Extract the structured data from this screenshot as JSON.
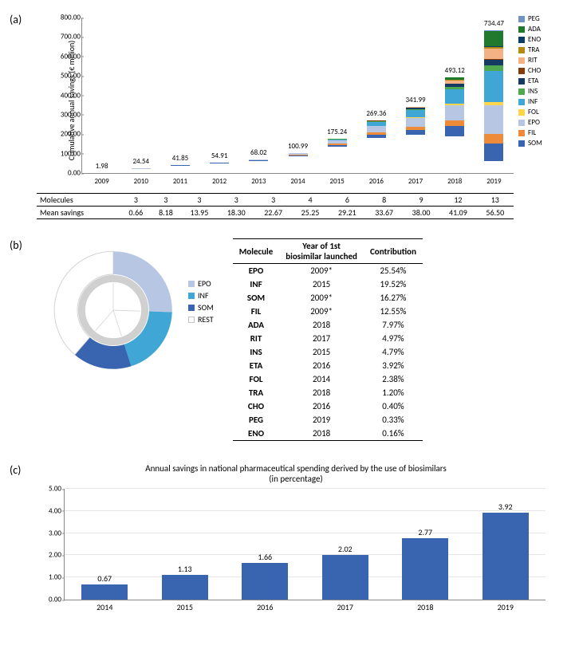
{
  "panels": {
    "a": "(a)",
    "b": "(b)",
    "c": "(c)"
  },
  "chartA": {
    "y_title": "Cumulative annual savings (€ million)",
    "ylim": [
      0,
      800
    ],
    "ytick_step": 100,
    "ytick_decimals": 2,
    "categories": [
      "2009",
      "2010",
      "2011",
      "2012",
      "2013",
      "2014",
      "2015",
      "2016",
      "2017",
      "2018",
      "2019"
    ],
    "totals": [
      "1.98",
      "24.54",
      "41.85",
      "54.91",
      "68.02",
      "100.99",
      "175.24",
      "269.36",
      "341.99",
      "493.12",
      "734.47"
    ],
    "legend_order": [
      "PEG",
      "ADA",
      "ENO",
      "TRA",
      "RIT",
      "CHO",
      "ETA",
      "INS",
      "INF",
      "FOL",
      "EPO",
      "FIL",
      "SOM"
    ],
    "colors": {
      "PEG": "#6f93c9",
      "ADA": "#1f7a2e",
      "ENO": "#0b3d66",
      "TRA": "#b58a13",
      "RIT": "#f4b183",
      "CHO": "#843c0c",
      "ETA": "#153b63",
      "INS": "#4ea84e",
      "INF": "#3fa6d6",
      "FOL": "#ffd54a",
      "EPO": "#b7c6e3",
      "FIL": "#ed8b3a",
      "SOM": "#3864b0"
    },
    "stacks": [
      {
        "EPO": 0.9,
        "FIL": 0.6,
        "SOM": 0.48
      },
      {
        "EPO": 12,
        "FIL": 6,
        "SOM": 6.54
      },
      {
        "EPO": 20,
        "FIL": 11,
        "SOM": 10.85
      },
      {
        "EPO": 26,
        "FIL": 15,
        "SOM": 13.91
      },
      {
        "EPO": 32,
        "FIL": 18,
        "SOM": 18.02
      },
      {
        "FOL": 3,
        "EPO": 48,
        "FIL": 24,
        "SOM": 25.99
      },
      {
        "INS": 5,
        "INF": 22,
        "FOL": 5,
        "EPO": 72,
        "FIL": 32,
        "SOM": 39.24
      },
      {
        "CHO": 2,
        "ETA": 8,
        "INS": 12,
        "INF": 55,
        "FOL": 7,
        "EPO": 95,
        "FIL": 38,
        "SOM": 52.36
      },
      {
        "RIT": 10,
        "CHO": 3,
        "ETA": 15,
        "INS": 17,
        "INF": 80,
        "FOL": 9,
        "EPO": 105,
        "FIL": 40,
        "SOM": 62.99
      },
      {
        "ADA": 22,
        "ENO": 2,
        "TRA": 6,
        "RIT": 25,
        "CHO": 3,
        "ETA": 22,
        "INS": 22,
        "INF": 120,
        "FOL": 12,
        "EPO": 130,
        "FIL": 45,
        "SOM": 84.12
      },
      {
        "PEG": 5,
        "ADA": 85,
        "ENO": 3,
        "TRA": 12,
        "RIT": 55,
        "CHO": 4,
        "ETA": 33,
        "INS": 32,
        "INF": 175,
        "FOL": 18,
        "EPO": 160,
        "FIL": 52,
        "SOM": 100.47
      }
    ],
    "table": {
      "rows": [
        {
          "head": "Molecules",
          "cells": [
            "3",
            "3",
            "3",
            "3",
            "3",
            "4",
            "6",
            "8",
            "9",
            "12",
            "13"
          ]
        },
        {
          "head": "Mean savings",
          "cells": [
            "0.66",
            "8.18",
            "13.95",
            "18.30",
            "22.67",
            "25.25",
            "29.21",
            "33.67",
            "38.00",
            "41.09",
            "56.50"
          ]
        }
      ]
    }
  },
  "chartB": {
    "donut": {
      "outer": [
        {
          "key": "EPO",
          "value": 25.54,
          "color": "#b7c6e3"
        },
        {
          "key": "INF",
          "value": 19.52,
          "color": "#3fa6d6"
        },
        {
          "key": "SOM",
          "value": 16.27,
          "color": "#3864b0"
        },
        {
          "key": "REST",
          "value": 38.67,
          "color": "#ffffff",
          "stroke": "#d0d0d0"
        }
      ],
      "inner_stroke": "#d0d0d0"
    },
    "legend": [
      {
        "label": "EPO",
        "color": "#b7c6e3"
      },
      {
        "label": "INF",
        "color": "#3fa6d6"
      },
      {
        "label": "SOM",
        "color": "#3864b0"
      },
      {
        "label": "REST",
        "color": "#ffffff",
        "border": "#c0c0c0"
      }
    ],
    "table": {
      "headers": [
        "Molecule",
        "Year of 1st biosimilar launched",
        "Contribution"
      ],
      "rows": [
        [
          "EPO",
          "2009*",
          "25.54%"
        ],
        [
          "INF",
          "2015",
          "19.52%"
        ],
        [
          "SOM",
          "2009*",
          "16.27%"
        ],
        [
          "FIL",
          "2009*",
          "12.55%"
        ],
        [
          "ADA",
          "2018",
          "7.97%"
        ],
        [
          "RIT",
          "2017",
          "4.97%"
        ],
        [
          "INS",
          "2015",
          "4.79%"
        ],
        [
          "ETA",
          "2016",
          "3.92%"
        ],
        [
          "FOL",
          "2014",
          "2.38%"
        ],
        [
          "TRA",
          "2018",
          "1.20%"
        ],
        [
          "CHO",
          "2016",
          "0.40%"
        ],
        [
          "PEG",
          "2019",
          "0.33%"
        ],
        [
          "ENO",
          "2018",
          "0.16%"
        ]
      ]
    }
  },
  "chartC": {
    "title": "Annual savings in national pharmaceutical spending derived by the use of biosimilars\n(in percentage)",
    "ylim": [
      0,
      5
    ],
    "ytick_step": 1,
    "ytick_decimals": 2,
    "grid_color": "#e6e6e6",
    "bar_color": "#3864b0",
    "categories": [
      "2014",
      "2015",
      "2016",
      "2017",
      "2018",
      "2019"
    ],
    "values": [
      0.67,
      1.13,
      1.66,
      2.02,
      2.77,
      3.92
    ]
  }
}
